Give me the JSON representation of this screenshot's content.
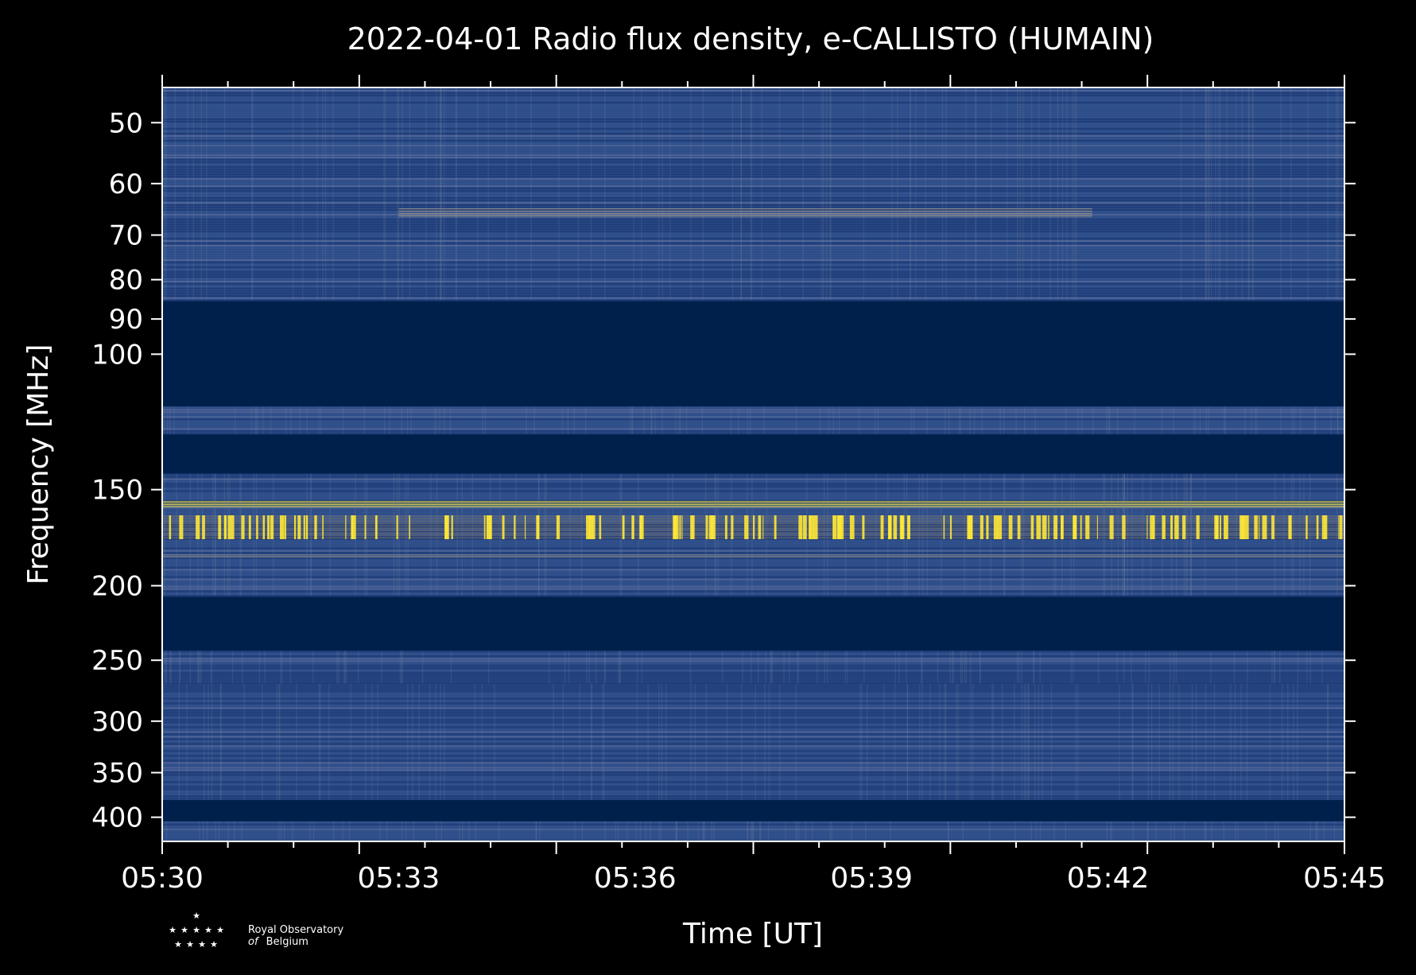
{
  "chart_data": {
    "type": "heatmap",
    "title": "2022-04-01 Radio flux density, e-CALLISTO (HUMAIN)",
    "xlabel": "Time [UT]",
    "ylabel": "Frequency [MHz]",
    "x_ticks": [
      "05:30",
      "05:33",
      "05:36",
      "05:39",
      "05:42",
      "05:45"
    ],
    "x_range_minutes": [
      0,
      15
    ],
    "y_scale": "log",
    "y_ticks": [
      50,
      60,
      70,
      80,
      90,
      100,
      150,
      200,
      250,
      300,
      350,
      400
    ],
    "ylim": [
      45,
      430
    ],
    "colormap": "cividis",
    "colors": {
      "background": "#000000",
      "low": "#00204c",
      "mid": "#2f4f8f",
      "high": "#fde737",
      "axis": "#ffffff"
    },
    "bands": [
      {
        "f_low": 45,
        "f_high": 85,
        "level": "noise"
      },
      {
        "f_low": 64.5,
        "f_high": 66.5,
        "level": "moderate",
        "t_start": 3,
        "t_end": 11.8
      },
      {
        "f_low": 85,
        "f_high": 117,
        "level": "low"
      },
      {
        "f_low": 117,
        "f_high": 127,
        "level": "noise"
      },
      {
        "f_low": 127,
        "f_high": 143,
        "level": "low"
      },
      {
        "f_low": 143,
        "f_high": 206,
        "level": "noise"
      },
      {
        "f_low": 155,
        "f_high": 158,
        "level": "high"
      },
      {
        "f_low": 162,
        "f_high": 174,
        "level": "bursty-high"
      },
      {
        "f_low": 182,
        "f_high": 184,
        "level": "moderate"
      },
      {
        "f_low": 206,
        "f_high": 243,
        "level": "low"
      },
      {
        "f_low": 243,
        "f_high": 268,
        "level": "noise"
      },
      {
        "f_low": 268,
        "f_high": 380,
        "level": "noise"
      },
      {
        "f_low": 380,
        "f_high": 405,
        "level": "low"
      },
      {
        "f_low": 405,
        "f_high": 430,
        "level": "noise"
      }
    ]
  },
  "logo": {
    "line1": "Royal Observatory",
    "line2_italic": "of",
    "line2": "Belgium"
  }
}
